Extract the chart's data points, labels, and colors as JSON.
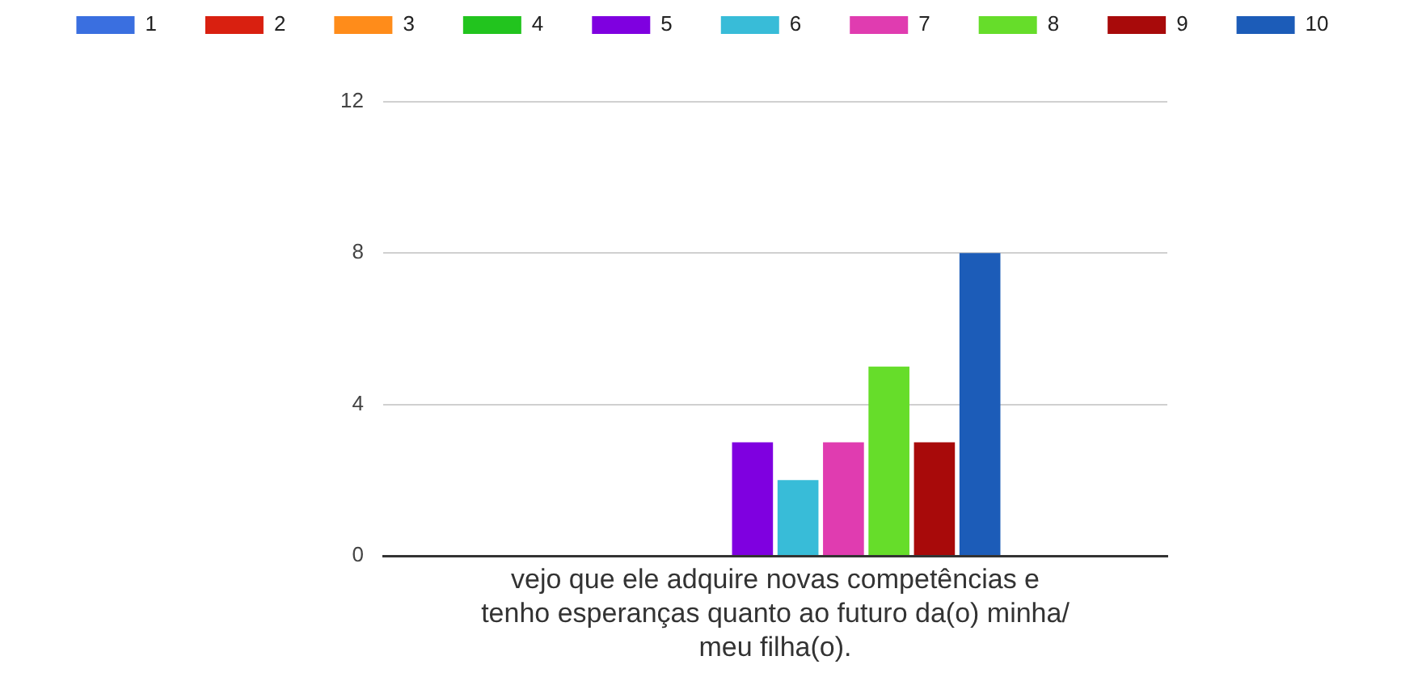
{
  "chart_data": {
    "type": "bar",
    "categories": [
      "vejo que ele adquire novas competências e tenho esperanças quanto ao futuro da(o) minha/ meu filha(o)."
    ],
    "series": [
      {
        "name": "1",
        "color": "#3a6fe0",
        "values": [
          0
        ]
      },
      {
        "name": "2",
        "color": "#d92010",
        "values": [
          0
        ]
      },
      {
        "name": "3",
        "color": "#ff8c1a",
        "values": [
          0
        ]
      },
      {
        "name": "4",
        "color": "#22c41e",
        "values": [
          0
        ]
      },
      {
        "name": "5",
        "color": "#7f00e0",
        "values": [
          3
        ]
      },
      {
        "name": "6",
        "color": "#38bcd8",
        "values": [
          2
        ]
      },
      {
        "name": "7",
        "color": "#e03cb0",
        "values": [
          3
        ]
      },
      {
        "name": "8",
        "color": "#66dd2a",
        "values": [
          5
        ]
      },
      {
        "name": "9",
        "color": "#a80a0a",
        "values": [
          3
        ]
      },
      {
        "name": "10",
        "color": "#1c5cb8",
        "values": [
          8
        ]
      }
    ],
    "ylim": [
      0,
      12
    ],
    "yticks": [
      0,
      4,
      8,
      12
    ],
    "grid": "y",
    "legend": "top"
  }
}
